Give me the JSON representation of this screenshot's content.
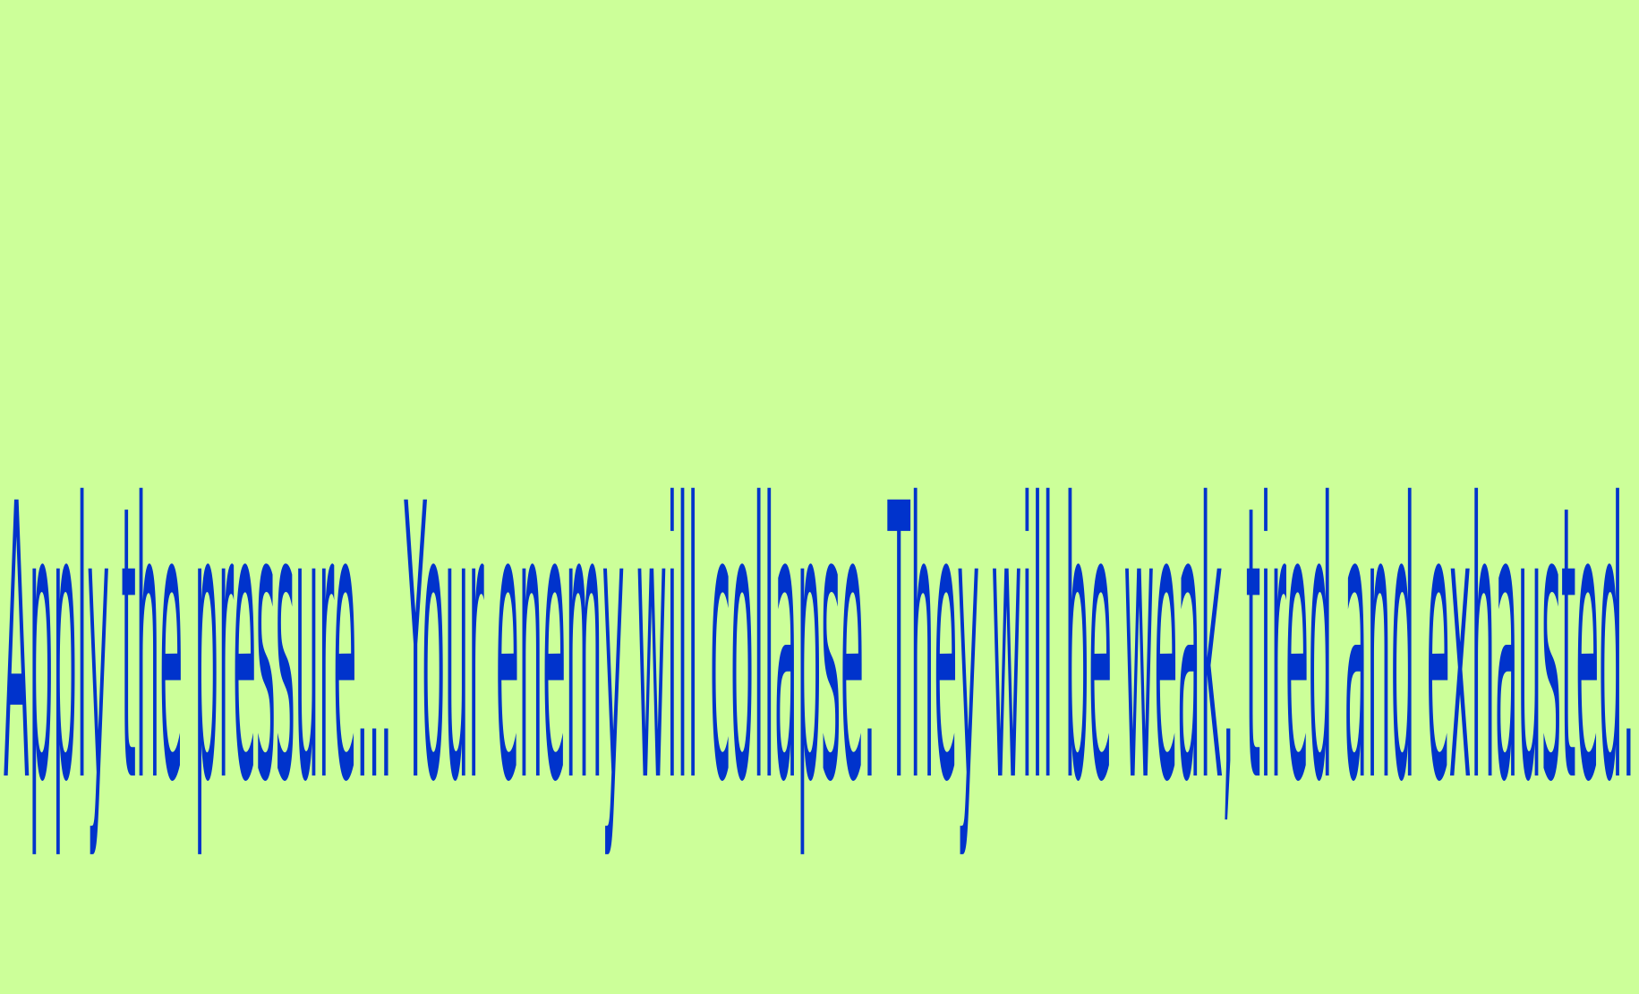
{
  "colors": {
    "background": "#ccff99",
    "glyphs": "#0033cc"
  },
  "text": {
    "content": "Apply the pressure... Your enemy will collapse. They will be weak, tired and exhausted."
  }
}
